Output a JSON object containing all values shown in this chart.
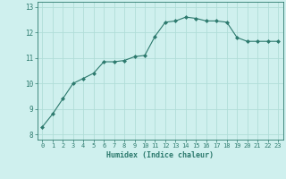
{
  "x": [
    0,
    1,
    2,
    3,
    4,
    5,
    6,
    7,
    8,
    9,
    10,
    11,
    12,
    13,
    14,
    15,
    16,
    17,
    18,
    19,
    20,
    21,
    22,
    23
  ],
  "y": [
    8.3,
    8.8,
    9.4,
    10.0,
    10.2,
    10.4,
    10.85,
    10.85,
    10.9,
    11.05,
    11.1,
    11.85,
    12.4,
    12.45,
    12.6,
    12.55,
    12.45,
    12.45,
    12.4,
    11.8,
    11.65,
    11.65,
    11.65,
    11.65
  ],
  "line_color": "#2d7a6e",
  "marker": "D",
  "marker_size": 2.0,
  "xlabel": "Humidex (Indice chaleur)",
  "xlim": [
    -0.5,
    23.5
  ],
  "ylim": [
    7.8,
    13.2
  ],
  "yticks": [
    8,
    9,
    10,
    11,
    12,
    13
  ],
  "xticks": [
    0,
    1,
    2,
    3,
    4,
    5,
    6,
    7,
    8,
    9,
    10,
    11,
    12,
    13,
    14,
    15,
    16,
    17,
    18,
    19,
    20,
    21,
    22,
    23
  ],
  "bg_color": "#cff0ee",
  "grid_color": "#b0ddd8",
  "tick_color": "#2d7a6e",
  "label_color": "#2d7a6e",
  "font_family": "monospace",
  "xtick_fontsize": 5.0,
  "ytick_fontsize": 5.5,
  "xlabel_fontsize": 6.0,
  "linewidth": 0.8
}
